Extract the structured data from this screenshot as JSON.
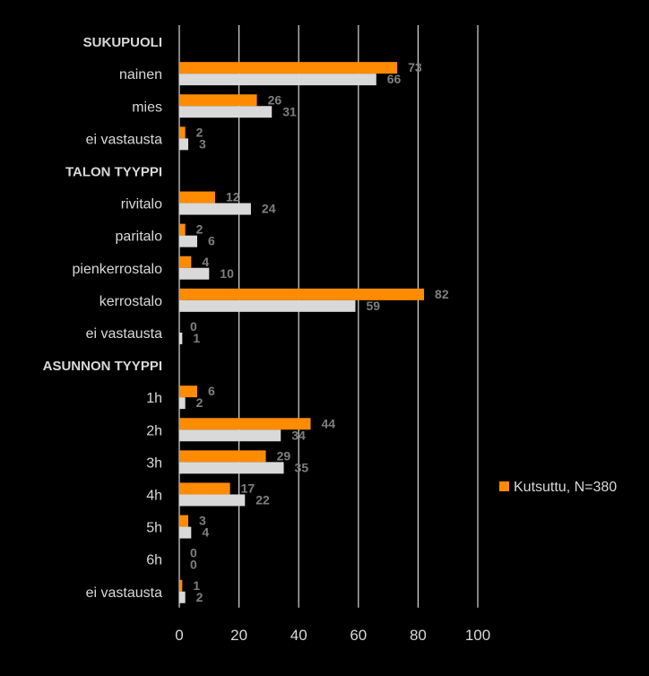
{
  "colors": {
    "series1": "#ff8c00",
    "series2": "#d9d9d9",
    "grid": "#d9d9d9",
    "background": "#000000"
  },
  "chart_data": {
    "type": "bar",
    "orientation": "horizontal",
    "categories": [
      "SUKUPUOLI",
      "nainen",
      "mies",
      "ei vastausta",
      "TALON TYYPPI",
      "rivitalo",
      "paritalo",
      "pienkerrostalo",
      "kerrostalo",
      "ei vastausta",
      "ASUNNON TYYPPI",
      "1h",
      "2h",
      "3h",
      "4h",
      "5h",
      "6h",
      "ei vastausta"
    ],
    "header_categories": [
      0,
      4,
      10
    ],
    "series": [
      {
        "name": "Kutsuttu, N=380",
        "values": [
          null,
          73,
          26,
          2,
          null,
          12,
          2,
          4,
          82,
          0,
          null,
          6,
          44,
          29,
          17,
          3,
          0,
          1
        ]
      },
      {
        "name": "",
        "values": [
          null,
          66,
          31,
          3,
          null,
          24,
          6,
          10,
          59,
          1,
          null,
          2,
          34,
          35,
          22,
          4,
          0,
          2
        ]
      }
    ],
    "xlim": [
      0,
      100
    ],
    "xticks": [
      0,
      20,
      40,
      60,
      80,
      100
    ],
    "grid": true,
    "legend": "right",
    "title": "",
    "xlabel": "",
    "ylabel": ""
  }
}
